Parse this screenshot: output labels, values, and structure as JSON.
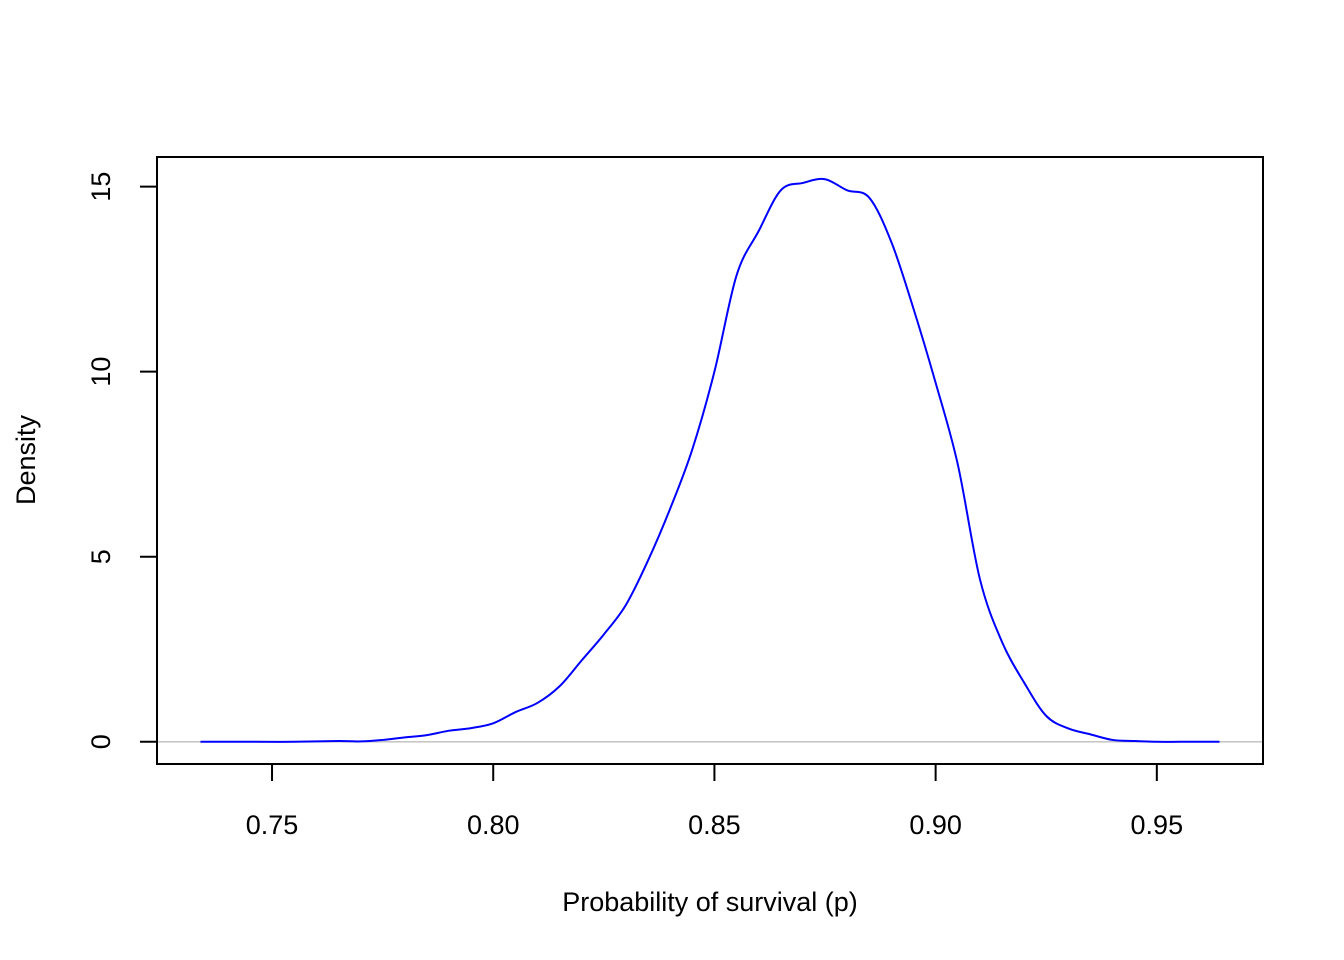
{
  "chart_data": {
    "type": "line",
    "title": "",
    "xlabel": "Probability of survival (p)",
    "ylabel": "Density",
    "xlim": [
      0.724,
      0.974
    ],
    "ylim": [
      -0.6,
      15.8
    ],
    "xticks": [
      {
        "value": 0.75,
        "label": "0.75"
      },
      {
        "value": 0.8,
        "label": "0.80"
      },
      {
        "value": 0.85,
        "label": "0.85"
      },
      {
        "value": 0.9,
        "label": "0.90"
      },
      {
        "value": 0.95,
        "label": "0.95"
      }
    ],
    "yticks": [
      {
        "value": 0,
        "label": "0"
      },
      {
        "value": 5,
        "label": "5"
      },
      {
        "value": 10,
        "label": "10"
      },
      {
        "value": 15,
        "label": "15"
      }
    ],
    "grid": false,
    "baseline": {
      "value": 0,
      "color": "#bebebe"
    },
    "series": [
      {
        "color": "#0000ff",
        "x": [
          0.734,
          0.745,
          0.755,
          0.765,
          0.77,
          0.775,
          0.78,
          0.785,
          0.79,
          0.795,
          0.8,
          0.805,
          0.81,
          0.815,
          0.82,
          0.825,
          0.83,
          0.835,
          0.84,
          0.845,
          0.85,
          0.855,
          0.86,
          0.865,
          0.87,
          0.875,
          0.88,
          0.885,
          0.89,
          0.895,
          0.9,
          0.905,
          0.91,
          0.915,
          0.92,
          0.925,
          0.93,
          0.935,
          0.94,
          0.945,
          0.95,
          0.955,
          0.96,
          0.964
        ],
        "y": [
          0.0,
          0.0,
          0.0,
          0.02,
          0.01,
          0.05,
          0.12,
          0.18,
          0.3,
          0.37,
          0.5,
          0.8,
          1.05,
          1.5,
          2.2,
          2.9,
          3.7,
          4.9,
          6.3,
          7.9,
          10.0,
          12.6,
          13.8,
          14.9,
          15.1,
          15.2,
          14.9,
          14.7,
          13.5,
          11.7,
          9.7,
          7.5,
          4.4,
          2.7,
          1.6,
          0.7,
          0.36,
          0.2,
          0.05,
          0.02,
          0.0,
          0.0,
          0.0,
          0.0
        ]
      }
    ]
  }
}
